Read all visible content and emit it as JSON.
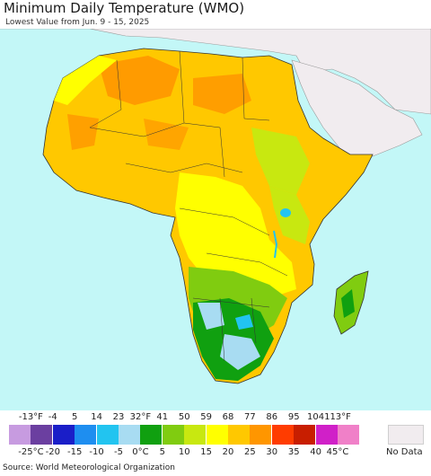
{
  "header": {
    "title": "Minimum Daily Temperature (WMO)",
    "subtitle": "Lowest Value from Jun. 9 - 15, 2025"
  },
  "legend": {
    "fahrenheit_labels": [
      "-13°F",
      "-4",
      "5",
      "14",
      "23",
      "32°F",
      "41",
      "50",
      "59",
      "68",
      "77",
      "86",
      "95",
      "104",
      "113°F"
    ],
    "celsius_labels": [
      "-25°C",
      "-20",
      "-15",
      "-10",
      "-5",
      "0°C",
      "5",
      "10",
      "15",
      "20",
      "25",
      "30",
      "35",
      "40",
      "45°C"
    ],
    "colors": [
      "#c79be0",
      "#6b3fa0",
      "#1a1ec8",
      "#1e8ef0",
      "#22c4f0",
      "#a8dcf2",
      "#10a010",
      "#80cc10",
      "#c8e810",
      "#ffff00",
      "#ffc800",
      "#ff9600",
      "#ff3c00",
      "#c81e00",
      "#d020c8",
      "#f080c8"
    ],
    "no_data_label": "No Data",
    "no_data_color": "#f1ecef"
  },
  "source": "Source: World Meteorological Organization"
}
